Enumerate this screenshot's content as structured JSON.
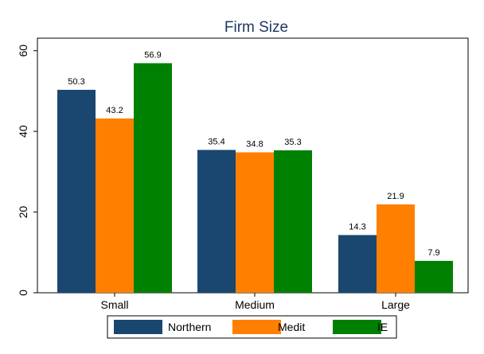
{
  "chart_data": {
    "type": "bar",
    "title": "Firm Size",
    "categories": [
      "Small",
      "Medium",
      "Large"
    ],
    "series": [
      {
        "name": "Northern",
        "color": "#1a476f",
        "values": [
          50.3,
          35.4,
          14.3
        ]
      },
      {
        "name": "Medit",
        "color": "#ff7f00",
        "values": [
          43.2,
          34.8,
          21.9
        ]
      },
      {
        "name": "IE",
        "color": "#008000",
        "values": [
          56.9,
          35.3,
          7.9
        ]
      }
    ],
    "yticks": [
      0,
      20,
      40,
      60
    ],
    "ylim": [
      0,
      62
    ],
    "xlabel": "",
    "ylabel": "",
    "legend_position": "bottom",
    "grid": false
  }
}
